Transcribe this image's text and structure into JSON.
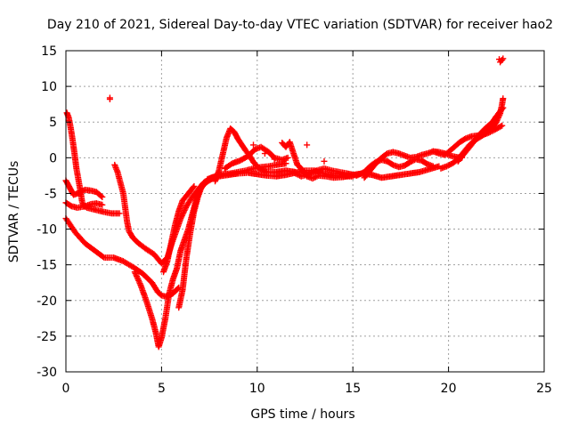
{
  "chart_data": {
    "type": "scatter",
    "title": "Day 210 of 2021, Sidereal Day-to-day VTEC variation (SDTVAR) for receiver hao2",
    "xlabel": "GPS time / hours",
    "ylabel": "SDTVAR / TECUs",
    "xlim": [
      0,
      25
    ],
    "ylim": [
      -30,
      15
    ],
    "xticks": [
      "0",
      "5",
      "10",
      "15",
      "20",
      "25"
    ],
    "yticks": [
      "-30",
      "-25",
      "-20",
      "-15",
      "-10",
      "-5",
      "0",
      "5",
      "10",
      "15"
    ],
    "grid": true,
    "marker": "+",
    "color": "#ff0000",
    "series": [
      {
        "points": [
          [
            0.05,
            6.3
          ],
          [
            0.15,
            5.6
          ],
          [
            0.25,
            4.2
          ],
          [
            0.35,
            2.5
          ],
          [
            0.45,
            0.6
          ],
          [
            0.55,
            -1.5
          ],
          [
            0.65,
            -3.0
          ],
          [
            0.75,
            -4.5
          ],
          [
            0.85,
            -6.2
          ],
          [
            0.95,
            -6.8
          ],
          [
            1.1,
            -7.0
          ],
          [
            1.4,
            -7.2
          ],
          [
            1.7,
            -7.4
          ],
          [
            2.0,
            -7.6
          ],
          [
            2.4,
            -7.8
          ],
          [
            2.8,
            -7.8
          ]
        ]
      },
      {
        "points": [
          [
            0.0,
            -6.3
          ],
          [
            0.3,
            -6.8
          ],
          [
            0.6,
            -7.0
          ],
          [
            1.0,
            -6.8
          ],
          [
            1.3,
            -6.5
          ],
          [
            1.6,
            -6.4
          ],
          [
            1.9,
            -6.6
          ]
        ]
      },
      {
        "points": [
          [
            0.0,
            -3.2
          ],
          [
            0.2,
            -4.2
          ],
          [
            0.4,
            -5.2
          ],
          [
            0.6,
            -5.0
          ],
          [
            0.8,
            -4.7
          ],
          [
            1.0,
            -4.5
          ],
          [
            1.3,
            -4.6
          ],
          [
            1.6,
            -4.8
          ],
          [
            1.9,
            -5.5
          ]
        ]
      },
      {
        "points": [
          [
            2.55,
            -1.0
          ],
          [
            2.7,
            -2.0
          ],
          [
            2.85,
            -3.5
          ],
          [
            3.0,
            -5.0
          ],
          [
            3.1,
            -7.0
          ],
          [
            3.2,
            -9.0
          ],
          [
            3.3,
            -10.3
          ],
          [
            3.5,
            -11.2
          ],
          [
            3.8,
            -12.0
          ],
          [
            4.2,
            -12.8
          ],
          [
            4.6,
            -13.5
          ],
          [
            5.0,
            -14.8
          ],
          [
            5.3,
            -14.0
          ],
          [
            5.6,
            -11.5
          ],
          [
            5.8,
            -10.0
          ],
          [
            6.0,
            -8.5
          ],
          [
            6.3,
            -6.8
          ],
          [
            6.6,
            -5.5
          ],
          [
            6.9,
            -4.5
          ],
          [
            7.2,
            -3.5
          ],
          [
            7.5,
            -3.0
          ],
          [
            7.8,
            -2.8
          ]
        ]
      },
      {
        "points": [
          [
            0.0,
            -8.5
          ],
          [
            0.5,
            -10.5
          ],
          [
            1.0,
            -12.0
          ],
          [
            1.5,
            -13.0
          ],
          [
            2.0,
            -14.0
          ],
          [
            2.5,
            -14.0
          ],
          [
            3.0,
            -14.5
          ],
          [
            3.5,
            -15.3
          ],
          [
            4.0,
            -16.2
          ],
          [
            4.5,
            -17.5
          ],
          [
            4.8,
            -18.8
          ],
          [
            5.0,
            -19.3
          ],
          [
            5.3,
            -19.5
          ],
          [
            5.6,
            -19.0
          ],
          [
            5.9,
            -18.2
          ]
        ]
      },
      {
        "points": [
          [
            3.6,
            -16.0
          ],
          [
            3.9,
            -17.8
          ],
          [
            4.2,
            -20.0
          ],
          [
            4.5,
            -22.5
          ],
          [
            4.7,
            -24.5
          ],
          [
            4.85,
            -26.5
          ],
          [
            5.0,
            -25.2
          ],
          [
            5.2,
            -22.5
          ],
          [
            5.4,
            -19.0
          ],
          [
            5.6,
            -17.0
          ],
          [
            5.8,
            -15.5
          ],
          [
            6.0,
            -13.0
          ],
          [
            6.2,
            -11.5
          ],
          [
            6.4,
            -10.0
          ],
          [
            6.6,
            -8.0
          ],
          [
            6.8,
            -6.0
          ],
          [
            7.0,
            -4.5
          ],
          [
            7.3,
            -3.5
          ],
          [
            7.6,
            -3.0
          ]
        ]
      },
      {
        "points": [
          [
            5.1,
            -16.0
          ],
          [
            5.3,
            -14.5
          ],
          [
            5.5,
            -12.0
          ],
          [
            5.7,
            -9.5
          ],
          [
            5.9,
            -7.5
          ],
          [
            6.1,
            -6.0
          ],
          [
            6.4,
            -5.0
          ],
          [
            6.7,
            -4.0
          ]
        ]
      },
      {
        "points": [
          [
            5.9,
            -21.0
          ],
          [
            6.1,
            -18.5
          ],
          [
            6.3,
            -14.0
          ],
          [
            6.5,
            -10.5
          ],
          [
            6.7,
            -7.5
          ],
          [
            6.9,
            -5.5
          ],
          [
            7.1,
            -4.0
          ]
        ]
      },
      {
        "points": [
          [
            7.8,
            -3.3
          ],
          [
            8.0,
            -1.8
          ],
          [
            8.2,
            0.5
          ],
          [
            8.4,
            2.8
          ],
          [
            8.6,
            4.1
          ],
          [
            8.8,
            3.6
          ],
          [
            9.0,
            2.6
          ],
          [
            9.2,
            1.8
          ],
          [
            9.4,
            1.0
          ],
          [
            9.6,
            0.3
          ],
          [
            9.8,
            -0.6
          ],
          [
            10.1,
            -1.5
          ],
          [
            10.5,
            -2.0
          ],
          [
            11.0,
            -2.0
          ],
          [
            11.5,
            -1.8
          ],
          [
            12.0,
            -2.0
          ]
        ]
      },
      {
        "points": [
          [
            7.4,
            -3.0
          ],
          [
            7.8,
            -2.6
          ],
          [
            8.2,
            -2.3
          ],
          [
            8.6,
            -2.2
          ],
          [
            9.0,
            -2.0
          ],
          [
            9.4,
            -1.8
          ],
          [
            9.8,
            -1.5
          ],
          [
            10.2,
            -1.3
          ],
          [
            10.6,
            -1.2
          ],
          [
            11.0,
            -1.0
          ],
          [
            11.5,
            -0.8
          ]
        ]
      },
      {
        "points": [
          [
            8.3,
            -1.5
          ],
          [
            8.7,
            -0.8
          ],
          [
            9.1,
            -0.4
          ],
          [
            9.5,
            0.2
          ],
          [
            9.9,
            1.2
          ],
          [
            10.2,
            1.5
          ],
          [
            10.6,
            0.8
          ],
          [
            10.9,
            0.0
          ],
          [
            11.3,
            -0.3
          ],
          [
            11.6,
            0.0
          ]
        ]
      },
      {
        "points": [
          [
            11.3,
            2.1
          ],
          [
            11.5,
            1.5
          ],
          [
            11.7,
            2.2
          ],
          [
            11.8,
            1.4
          ],
          [
            11.9,
            0.6
          ],
          [
            12.1,
            -1.0
          ],
          [
            12.3,
            -1.5
          ],
          [
            12.6,
            -2.6
          ],
          [
            12.9,
            -2.9
          ],
          [
            13.2,
            -2.5
          ],
          [
            13.6,
            -2.6
          ],
          [
            14.0,
            -2.8
          ],
          [
            14.5,
            -2.7
          ],
          [
            15.0,
            -2.4
          ],
          [
            15.5,
            -2.2
          ],
          [
            16.0,
            -2.4
          ],
          [
            16.5,
            -2.8
          ],
          [
            17.0,
            -2.6
          ],
          [
            17.5,
            -2.4
          ],
          [
            18.0,
            -2.2
          ],
          [
            18.5,
            -2.0
          ],
          [
            19.0,
            -1.6
          ],
          [
            19.5,
            -1.2
          ]
        ]
      },
      {
        "points": [
          [
            12.0,
            -2.2
          ],
          [
            12.3,
            -2.6
          ],
          [
            12.7,
            -2.3
          ],
          [
            13.1,
            -1.8
          ],
          [
            13.5,
            -1.5
          ],
          [
            13.9,
            -1.8
          ],
          [
            14.3,
            -2.0
          ],
          [
            14.7,
            -2.2
          ],
          [
            15.2,
            -2.5
          ],
          [
            15.6,
            -2.0
          ],
          [
            15.9,
            -1.2
          ],
          [
            16.2,
            -0.6
          ],
          [
            16.5,
            -0.3
          ],
          [
            16.8,
            -0.5
          ],
          [
            17.1,
            -1.0
          ],
          [
            17.4,
            -1.3
          ],
          [
            17.7,
            -1.1
          ],
          [
            18.0,
            -0.6
          ],
          [
            18.3,
            -0.2
          ],
          [
            18.6,
            -0.4
          ],
          [
            18.9,
            -0.9
          ],
          [
            19.2,
            -1.2
          ]
        ]
      },
      {
        "points": [
          [
            15.6,
            -2.8
          ],
          [
            15.9,
            -1.8
          ],
          [
            16.2,
            -0.8
          ],
          [
            16.5,
            0.0
          ],
          [
            16.8,
            0.6
          ],
          [
            17.1,
            0.8
          ],
          [
            17.4,
            0.6
          ],
          [
            17.7,
            0.3
          ],
          [
            18.0,
            0.0
          ],
          [
            18.3,
            0.1
          ],
          [
            18.6,
            0.4
          ],
          [
            18.9,
            0.6
          ],
          [
            19.2,
            0.9
          ],
          [
            19.5,
            0.8
          ],
          [
            19.8,
            0.6
          ],
          [
            20.1,
            0.3
          ],
          [
            20.4,
            0.1
          ],
          [
            20.7,
            0.0
          ]
        ]
      },
      {
        "points": [
          [
            19.2,
            0.9
          ],
          [
            19.5,
            0.6
          ],
          [
            19.8,
            0.4
          ],
          [
            20.0,
            0.8
          ],
          [
            20.3,
            1.5
          ],
          [
            20.6,
            2.2
          ],
          [
            20.9,
            2.7
          ],
          [
            21.2,
            3.0
          ],
          [
            21.5,
            3.1
          ],
          [
            21.8,
            3.2
          ],
          [
            22.1,
            3.5
          ],
          [
            22.4,
            3.9
          ],
          [
            22.6,
            4.2
          ],
          [
            22.8,
            4.5
          ]
        ]
      },
      {
        "points": [
          [
            19.6,
            -1.5
          ],
          [
            19.9,
            -1.2
          ],
          [
            20.2,
            -0.8
          ],
          [
            20.5,
            -0.2
          ],
          [
            20.8,
            0.8
          ],
          [
            21.1,
            1.8
          ],
          [
            21.4,
            2.5
          ],
          [
            21.7,
            3.0
          ],
          [
            22.0,
            3.5
          ],
          [
            22.3,
            4.2
          ],
          [
            22.5,
            5.0
          ],
          [
            22.7,
            6.2
          ],
          [
            22.8,
            7.5
          ],
          [
            22.85,
            8.3
          ]
        ]
      },
      {
        "points": [
          [
            20.5,
            -0.5
          ],
          [
            20.8,
            0.5
          ],
          [
            21.1,
            1.5
          ],
          [
            21.4,
            2.5
          ],
          [
            21.7,
            3.5
          ],
          [
            22.0,
            4.3
          ],
          [
            22.3,
            5.0
          ],
          [
            22.5,
            5.8
          ],
          [
            22.7,
            6.5
          ],
          [
            22.85,
            7.0
          ]
        ]
      },
      {
        "points": [
          [
            7.6,
            -2.8
          ],
          [
            8.0,
            -2.6
          ],
          [
            8.5,
            -2.4
          ],
          [
            9.0,
            -2.2
          ],
          [
            9.5,
            -2.1
          ],
          [
            10.0,
            -2.3
          ],
          [
            10.5,
            -2.5
          ],
          [
            11.0,
            -2.6
          ],
          [
            11.5,
            -2.4
          ],
          [
            12.0,
            -2.1
          ],
          [
            12.5,
            -1.8
          ],
          [
            13.0,
            -1.8
          ],
          [
            13.5,
            -2.2
          ],
          [
            14.0,
            -2.5
          ],
          [
            14.5,
            -2.6
          ],
          [
            15.0,
            -2.6
          ]
        ]
      },
      {
        "points": [
          [
            2.3,
            8.4
          ],
          [
            2.3,
            8.2
          ],
          [
            9.8,
            1.8
          ],
          [
            10.4,
            0.6
          ],
          [
            10.9,
            -0.2
          ],
          [
            12.6,
            1.8
          ],
          [
            13.5,
            -0.5
          ],
          [
            22.65,
            13.8
          ],
          [
            22.75,
            13.6
          ],
          [
            22.85,
            13.9
          ],
          [
            22.7,
            13.4
          ],
          [
            22.8,
            13.7
          ]
        ]
      }
    ]
  }
}
